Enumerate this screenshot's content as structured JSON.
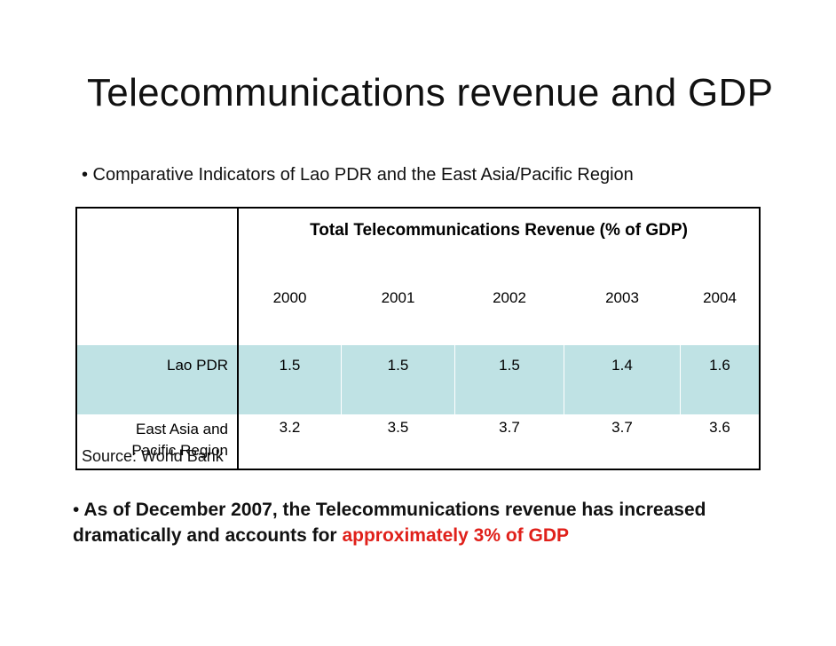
{
  "slide": {
    "title": "Telecommunications revenue and GDP",
    "subtitle": "• Comparative Indicators of Lao PDR and the East Asia/Pacific Region"
  },
  "table": {
    "header": "Total Telecommunications Revenue (% of GDP)",
    "years": [
      "2000",
      "2001",
      "2002",
      "2003",
      "2004"
    ],
    "rows": [
      {
        "label": "Lao PDR",
        "values": [
          "1.5",
          "1.5",
          "1.5",
          "1.4",
          "1.6"
        ]
      },
      {
        "label_line1": "East Asia and",
        "label_line2": "Pacific Region",
        "values": [
          "3.2",
          "3.5",
          "3.7",
          "3.7",
          "3.6"
        ]
      }
    ],
    "highlight_color": "#bfe2e4"
  },
  "source": "Source: World Bank",
  "note": {
    "bullet": "•",
    "text": "As of December 2007, the Telecommunications revenue has increased dramatically and accounts for",
    "highlight": "approximately 3% of GDP",
    "highlight_color": "#e0201a"
  }
}
